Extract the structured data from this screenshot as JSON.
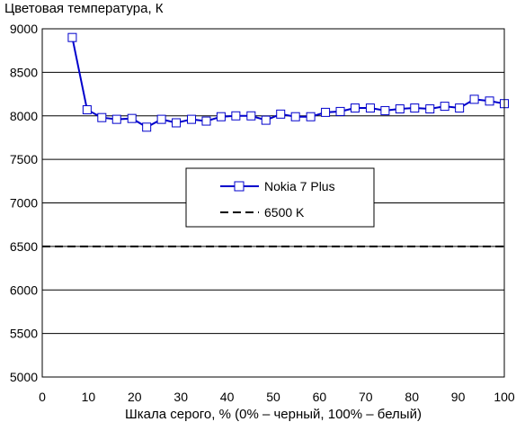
{
  "chart_data": {
    "type": "line",
    "title": "Цветовая температура, К",
    "xlabel": "Шкала серого, % (0% – черный, 100% – белый)",
    "ylabel": "",
    "xlim": [
      0,
      100
    ],
    "ylim": [
      5000,
      9000
    ],
    "xticks": [
      "0",
      "10",
      "20",
      "30",
      "40",
      "50",
      "60",
      "70",
      "80",
      "90",
      "100"
    ],
    "yticks": [
      "5000",
      "5500",
      "6000",
      "6500",
      "7000",
      "7500",
      "8000",
      "8500",
      "9000"
    ],
    "grid": true,
    "legend_position": "center",
    "series": [
      {
        "name": "Nokia 7 Plus",
        "color": "#0000cc",
        "marker": "square",
        "x": [
          6.5,
          9.7,
          12.9,
          16.1,
          19.4,
          22.6,
          25.8,
          29.0,
          32.3,
          35.5,
          38.7,
          41.9,
          45.2,
          48.4,
          51.6,
          54.8,
          58.1,
          61.3,
          64.5,
          67.7,
          71.0,
          74.2,
          77.4,
          80.6,
          83.9,
          87.1,
          90.3,
          93.5,
          96.8,
          100
        ],
        "values": [
          8900,
          8070,
          7980,
          7960,
          7970,
          7870,
          7960,
          7920,
          7960,
          7940,
          7990,
          8000,
          8000,
          7950,
          8020,
          7990,
          7990,
          8040,
          8050,
          8090,
          8090,
          8060,
          8080,
          8090,
          8080,
          8110,
          8090,
          8190,
          8170,
          8140
        ]
      },
      {
        "name": "6500 K",
        "color": "#000000",
        "dash": true,
        "x": [
          0,
          100
        ],
        "values": [
          6500,
          6500
        ]
      }
    ]
  }
}
